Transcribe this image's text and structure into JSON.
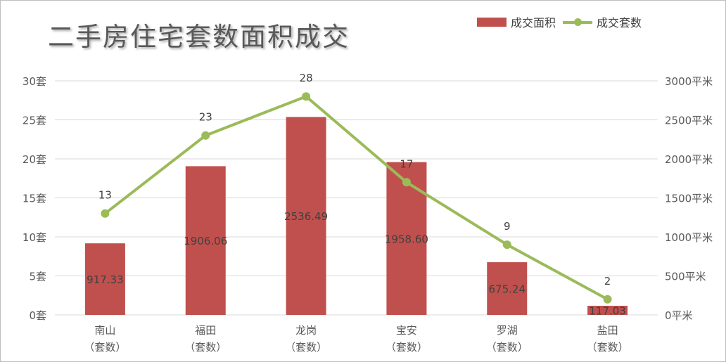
{
  "title": "二手房住宅套数面积成交",
  "legend": {
    "area_label": "成交面积",
    "count_label": "成交套数"
  },
  "colors": {
    "bar": "#C0504D",
    "line": "#9BBB59",
    "grid": "#d9d9d9",
    "axis_text": "#595959",
    "label_text": "#404040"
  },
  "chart_data": {
    "type": "bar",
    "categories": [
      [
        "南山",
        "（套数）"
      ],
      [
        "福田",
        "（套数）"
      ],
      [
        "龙岗",
        "（套数）"
      ],
      [
        "宝安",
        "（套数）"
      ],
      [
        "罗湖",
        "（套数）"
      ],
      [
        "盐田",
        "（套数）"
      ]
    ],
    "series": [
      {
        "name": "成交面积",
        "type": "bar",
        "axis": "right",
        "values": [
          917.33,
          1906.06,
          2536.49,
          1958.6,
          675.24,
          117.03
        ],
        "labels": [
          "917.33",
          "1906.06",
          "2536.49",
          "1958.60",
          "675.24",
          "117.03"
        ]
      },
      {
        "name": "成交套数",
        "type": "line",
        "axis": "left",
        "values": [
          13,
          23,
          28,
          17,
          9,
          2
        ],
        "labels": [
          "13",
          "23",
          "28",
          "17",
          "9",
          "2"
        ]
      }
    ],
    "y_left": {
      "range": [
        0,
        30
      ],
      "ticks": [
        0,
        5,
        10,
        15,
        20,
        25,
        30
      ],
      "tick_labels": [
        "0套",
        "5套",
        "10套",
        "15套",
        "20套",
        "25套",
        "30套"
      ]
    },
    "y_right": {
      "range": [
        0,
        3000
      ],
      "ticks": [
        0,
        500,
        1000,
        1500,
        2000,
        2500,
        3000
      ],
      "tick_labels": [
        "0平米",
        "500平米",
        "1000平米",
        "1500平米",
        "2000平米",
        "2500平米",
        "3000平米"
      ]
    },
    "grid": true,
    "legend_position": "top-right"
  }
}
